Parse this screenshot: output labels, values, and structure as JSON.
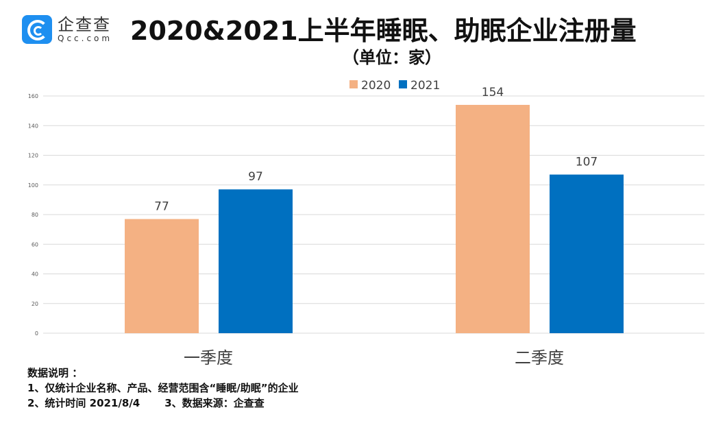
{
  "logo": {
    "cn": "企查查",
    "en": "Qcc.com"
  },
  "title": "2020&2021上半年睡眠、助眠企业注册量",
  "subtitle": "（单位：家）",
  "notes": {
    "heading": "数据说明 ：",
    "line1": "1、仅统计企业名称、产品、经营范围含“睡眠/助眠”的企业",
    "line2a": "2、统计时间 2021/8/4",
    "line2b": "3、数据来源：企查查"
  },
  "chart_data": {
    "type": "bar",
    "categories": [
      "一季度",
      "二季度"
    ],
    "series": [
      {
        "name": "2020",
        "values": [
          77,
          154
        ],
        "color": "#f4b183"
      },
      {
        "name": "2021",
        "values": [
          97,
          107
        ],
        "color": "#0070c0"
      }
    ],
    "ylim": [
      0,
      160
    ],
    "yticks": [
      0,
      20,
      40,
      60,
      80,
      100,
      120,
      140,
      160
    ],
    "grid": true,
    "legend": "top-center",
    "data_labels": true
  }
}
